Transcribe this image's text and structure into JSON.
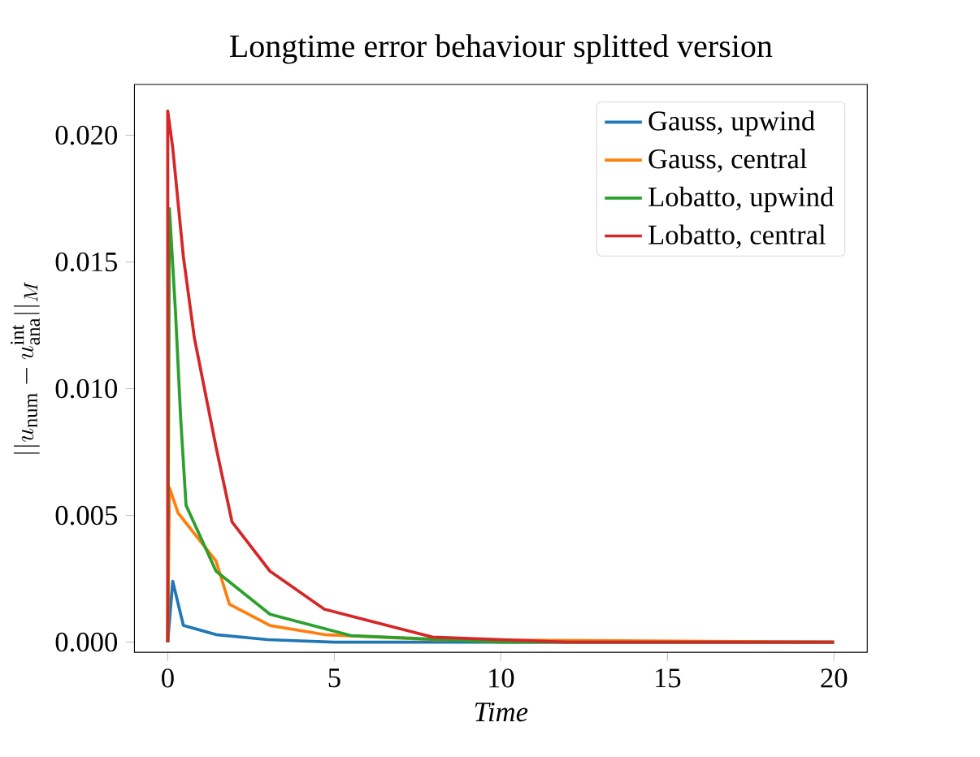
{
  "chart_data": {
    "type": "line",
    "title": "Longtime error behaviour splitted version",
    "xlabel": "Time",
    "ylabel": "||u_{\\mathrm{num}} - u^{\\mathrm{int}}_{\\mathrm{ana}}||_M",
    "xlim": [
      -1,
      21
    ],
    "ylim": [
      -0.0004,
      0.022
    ],
    "xticks": [
      0,
      5,
      10,
      15,
      20
    ],
    "yticks": [
      {
        "value": 0,
        "label": "0.000"
      },
      {
        "value": 0.005,
        "label": "0.005"
      },
      {
        "value": 0.01,
        "label": "0.010"
      },
      {
        "value": 0.015,
        "label": "0.015"
      },
      {
        "value": 0.02,
        "label": "0.020"
      }
    ],
    "legend": "top right",
    "grid": false,
    "line_style": "solid",
    "marker": "none",
    "series": [
      {
        "name": "Gauss, upwind",
        "color": "#1f77b4",
        "x": [
          0,
          0.15,
          0.47,
          1.45,
          3,
          5,
          10,
          20
        ],
        "values": [
          0,
          0.0024,
          0.00066,
          0.0003,
          0.0001,
          0,
          0,
          0
        ]
      },
      {
        "name": "Gauss, central",
        "color": "#ff7f0e",
        "x": [
          0,
          0.05,
          0.31,
          1.45,
          1.85,
          3.07,
          4.7,
          8,
          20
        ],
        "values": [
          0,
          0.0061,
          0.0051,
          0.0032,
          0.0015,
          0.00066,
          0.0003,
          0.0001,
          0
        ]
      },
      {
        "name": "Lobatto, upwind",
        "color": "#2ca02c",
        "x": [
          0,
          0.05,
          0.23,
          0.39,
          0.55,
          1.45,
          3.07,
          5.5,
          10,
          20
        ],
        "values": [
          0,
          0.0171,
          0.0131,
          0.0088,
          0.0054,
          0.0028,
          0.0011,
          0.00026,
          0,
          0
        ]
      },
      {
        "name": "Lobatto, central",
        "color": "#d62728",
        "x": [
          0,
          0,
          0.15,
          0.47,
          0.8,
          1.45,
          1.93,
          3.07,
          4.7,
          7.95,
          12,
          20
        ],
        "values": [
          0,
          0.02096,
          0.0195,
          0.0152,
          0.012,
          0.0077,
          0.00474,
          0.0028,
          0.0013,
          0.0002,
          0,
          0
        ]
      }
    ]
  }
}
